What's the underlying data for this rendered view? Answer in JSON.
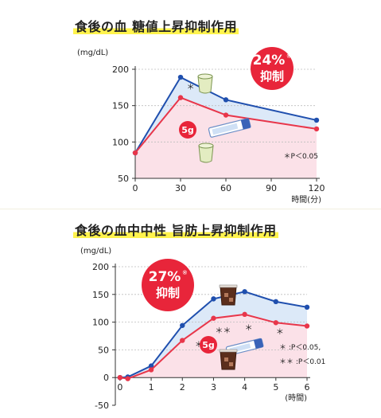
{
  "chart_data": [
    {
      "type": "line",
      "title": "食後の血 糖値上昇抑制作用",
      "ylabel": "(mg/dL)",
      "xlabel": "時間(分)",
      "x": [
        0,
        30,
        60,
        120
      ],
      "xticks": [
        "0",
        "30",
        "60",
        "90",
        "120"
      ],
      "xlim": [
        0,
        120
      ],
      "yticks": [
        "50",
        "100",
        "150",
        "200"
      ],
      "ylim": [
        50,
        200
      ],
      "series": [
        {
          "values": [
            85,
            189,
            158,
            130
          ],
          "color": "#1f4fae"
        },
        {
          "values": [
            85,
            161,
            137,
            118
          ],
          "color": "#e8364a"
        }
      ],
      "marks": [
        {
          "text": "＊",
          "x": 34,
          "y": 172
        }
      ],
      "badge": {
        "value": "24%",
        "sup": "※",
        "label": "抑制"
      },
      "dose": "5g",
      "note": "＊P＜0.05",
      "colors": {
        "upper_fill": "#dce9f8",
        "lower_fill": "#fbe1e8",
        "badge": "#e8253a"
      },
      "icons": [
        "cup-icon",
        "stick-pack-icon",
        "cup-icon"
      ]
    },
    {
      "type": "line",
      "title": "食後の血中中性 旨肪上昇抑制作用",
      "ylabel": "(mg/dL)",
      "xlabel": "(時間)",
      "x": [
        0,
        0.25,
        1,
        2,
        3,
        4,
        5,
        6
      ],
      "xticks": [
        "0",
        "1",
        "2",
        "3",
        "4",
        "5",
        "6"
      ],
      "xlim": [
        -0.15,
        6
      ],
      "yticks": [
        "-50",
        "0",
        "50",
        "100",
        "150",
        "200"
      ],
      "ylim": [
        -50,
        200
      ],
      "series": [
        {
          "values": [
            0,
            1,
            21,
            94,
            142,
            155,
            137,
            127
          ],
          "color": "#1f4fae"
        },
        {
          "values": [
            0,
            -2,
            14,
            67,
            107,
            114,
            99,
            93
          ],
          "color": "#e8364a"
        }
      ],
      "marks": [
        {
          "text": "＊＊",
          "x": 3.05,
          "y": 80
        },
        {
          "text": "＊＊",
          "x": 2.4,
          "y": 55
        },
        {
          "text": "＊",
          "x": 4.0,
          "y": 85
        },
        {
          "text": "＊",
          "x": 5.0,
          "y": 78
        }
      ],
      "badge": {
        "value": "27%",
        "sup": "※",
        "label": "抑制"
      },
      "dose": "5g",
      "note": [
        "＊ :P＜0.05,",
        "＊＊ :P＜0.01"
      ],
      "colors": {
        "upper_fill": "#dce9f8",
        "lower_fill": "#fbe1e8",
        "badge": "#e8253a"
      },
      "icons": [
        "drink-glass-icon",
        "stick-pack-icon",
        "drink-glass-icon"
      ]
    }
  ]
}
